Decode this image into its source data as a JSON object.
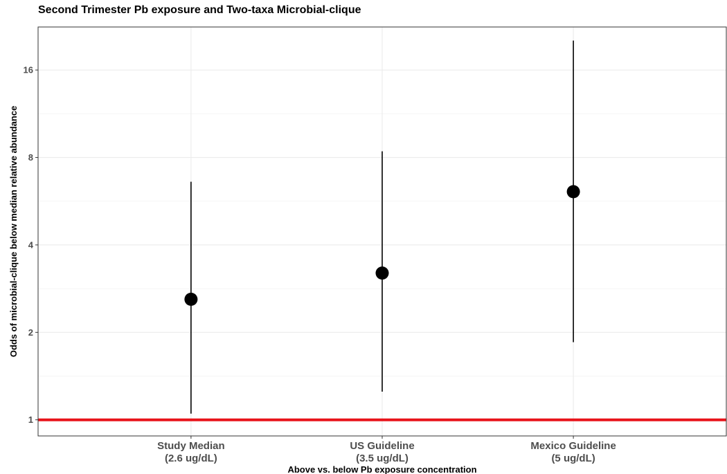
{
  "chart_data": {
    "type": "scatter",
    "title": "Second Trimester Pb exposure and Two-taxa Microbial-clique",
    "xlabel": "Above vs. below Pb exposure concentration",
    "ylabel": "Odds of microbial-clique below median relative abundance",
    "y_scale": "log2",
    "ylim": [
      0.88,
      22.5
    ],
    "y_ticks": [
      1,
      2,
      4,
      8,
      16
    ],
    "y_tick_labels": [
      "1",
      "2",
      "4",
      "8",
      "16"
    ],
    "grid": true,
    "reference_line": {
      "y": 1,
      "color": "#e8141b"
    },
    "categories": [
      {
        "line1": "Study Median",
        "line2": "(2.6 ug/dL)"
      },
      {
        "line1": "US Guideline",
        "line2": "(3.5 ug/dL)"
      },
      {
        "line1": "Mexico Guideline",
        "line2": "(5 ug/dL)"
      }
    ],
    "estimates": [
      2.6,
      3.2,
      6.1
    ],
    "ci_lower": [
      1.05,
      1.25,
      1.85
    ],
    "ci_upper": [
      6.6,
      8.4,
      20.2
    ]
  }
}
